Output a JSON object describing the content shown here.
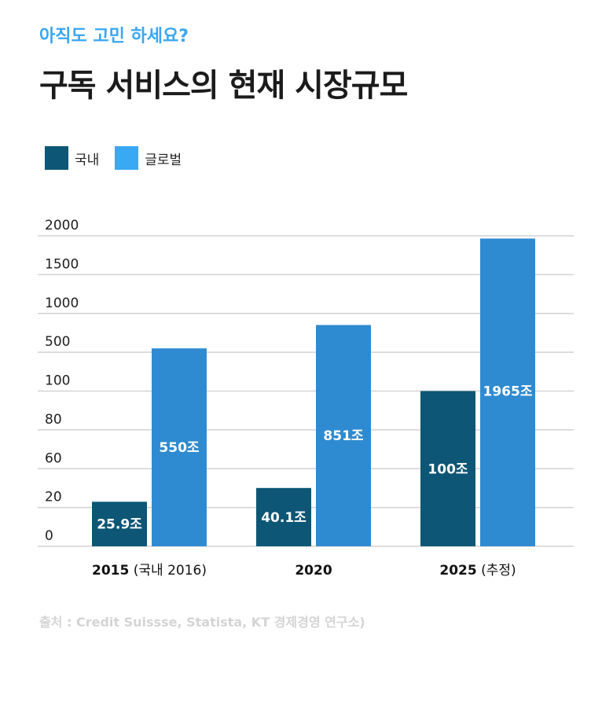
{
  "header": {
    "subtitle": "아직도 고민 하세요?",
    "title": "구독 서비스의 현재 시장규모"
  },
  "colors": {
    "domestic": "#0d5675",
    "global": "#2f8bd1",
    "global_legend": "#39a9f3",
    "grid": "#d2d2d2"
  },
  "source": "출처 : Credit Suissse, Statista, KT 경제경영 연구소)",
  "chart_data": {
    "type": "bar",
    "legend_position": "top-left",
    "grid": true,
    "y_ticks": [
      "0",
      "20",
      "60",
      "80",
      "100",
      "500",
      "1000",
      "1500",
      "2000"
    ],
    "categories": [
      {
        "year": "2015",
        "note": "(국내 2016)"
      },
      {
        "year": "2020",
        "note": ""
      },
      {
        "year": "2025",
        "note": "(추정)"
      }
    ],
    "series": [
      {
        "name": "국내",
        "values": [
          25.9,
          40.1,
          100
        ],
        "labels": [
          "25.9조",
          "40.1조",
          "100조"
        ]
      },
      {
        "name": "글로벌",
        "values": [
          550,
          851,
          1965
        ],
        "labels": [
          "550조",
          "851조",
          "1965조"
        ]
      }
    ]
  }
}
